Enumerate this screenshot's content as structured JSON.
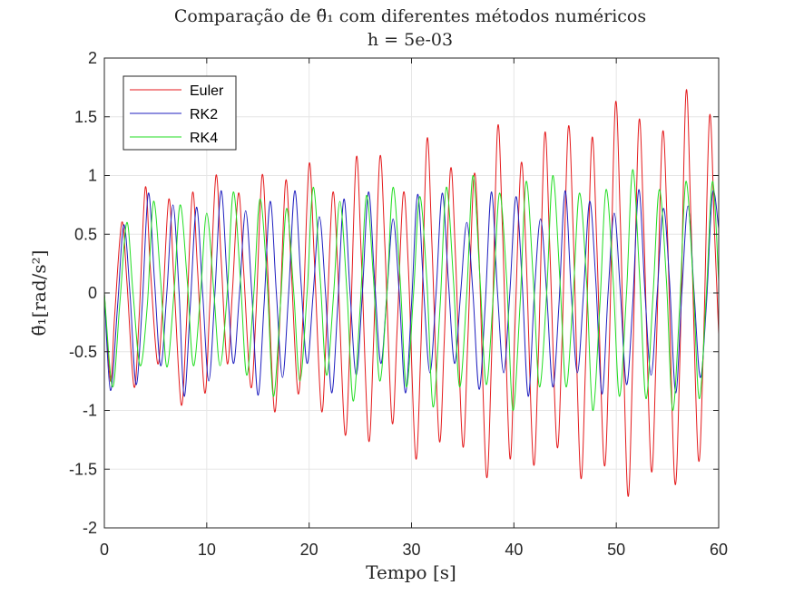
{
  "chart_data": {
    "type": "line",
    "title": "Comparação de θ̈₁ com diferentes métodos numéricos",
    "subtitle": "h = 5e-03",
    "xlabel": "Tempo [s]",
    "ylabel": "θ̈₁[rad/s²]",
    "xlim": [
      0,
      60
    ],
    "ylim": [
      -2,
      2
    ],
    "xticks": [
      0,
      10,
      20,
      30,
      40,
      50,
      60
    ],
    "yticks": [
      -2,
      -1.5,
      -1,
      -0.5,
      0,
      0.5,
      1,
      1.5,
      2
    ],
    "xtick_labels": [
      "0",
      "10",
      "20",
      "30",
      "40",
      "50",
      "60"
    ],
    "ytick_labels": [
      "-2",
      "-1.5",
      "-1",
      "-0.5",
      "0",
      "0.5",
      "1",
      "1.5",
      "2"
    ],
    "grid": true,
    "legend_position": "top-left",
    "series": [
      {
        "name": "Euler",
        "color": "#e41a1c",
        "points": [
          [
            0.0,
            0.0
          ],
          [
            0.6,
            -0.75
          ],
          [
            1.0,
            -0.2
          ],
          [
            1.7,
            0.6
          ],
          [
            2.2,
            0.1
          ],
          [
            2.9,
            -0.8
          ],
          [
            3.4,
            -0.2
          ],
          [
            4.0,
            0.9
          ],
          [
            4.5,
            0.2
          ],
          [
            5.2,
            -0.6
          ],
          [
            5.7,
            -0.1
          ],
          [
            6.3,
            0.8
          ],
          [
            6.8,
            0.1
          ],
          [
            7.5,
            -0.95
          ],
          [
            8.0,
            -0.3
          ],
          [
            8.6,
            0.85
          ],
          [
            9.1,
            0.2
          ],
          [
            9.8,
            -0.85
          ],
          [
            10.3,
            -0.1
          ],
          [
            10.9,
            1.0
          ],
          [
            11.4,
            0.3
          ],
          [
            12.0,
            -0.6
          ],
          [
            12.5,
            0.0
          ],
          [
            13.1,
            0.85
          ],
          [
            13.6,
            0.2
          ],
          [
            14.3,
            -0.8
          ],
          [
            14.8,
            -0.2
          ],
          [
            15.4,
            1.0
          ],
          [
            15.9,
            0.3
          ],
          [
            16.6,
            -1.0
          ],
          [
            17.1,
            -0.3
          ],
          [
            17.7,
            0.95
          ],
          [
            18.2,
            0.3
          ],
          [
            18.9,
            -0.85
          ],
          [
            19.4,
            -0.2
          ],
          [
            20.0,
            1.1
          ],
          [
            20.5,
            0.3
          ],
          [
            21.2,
            -1.0
          ],
          [
            21.7,
            -0.3
          ],
          [
            22.3,
            0.85
          ],
          [
            22.8,
            0.2
          ],
          [
            23.5,
            -1.2
          ],
          [
            24.0,
            -0.4
          ],
          [
            24.6,
            1.15
          ],
          [
            25.1,
            0.3
          ],
          [
            25.8,
            -1.25
          ],
          [
            26.3,
            -0.4
          ],
          [
            26.9,
            1.15
          ],
          [
            27.4,
            0.4
          ],
          [
            28.1,
            -1.1
          ],
          [
            28.6,
            -0.3
          ],
          [
            29.2,
            0.85
          ],
          [
            29.7,
            0.2
          ],
          [
            30.4,
            -1.4
          ],
          [
            30.9,
            -0.5
          ],
          [
            31.5,
            1.3
          ],
          [
            32.0,
            0.4
          ],
          [
            32.7,
            -1.25
          ],
          [
            33.2,
            -0.4
          ],
          [
            33.8,
            1.05
          ],
          [
            34.3,
            0.3
          ],
          [
            35.0,
            -1.3
          ],
          [
            35.5,
            -0.4
          ],
          [
            36.1,
            1.0
          ],
          [
            36.6,
            0.3
          ],
          [
            37.3,
            -1.55
          ],
          [
            37.8,
            -0.6
          ],
          [
            38.4,
            1.4
          ],
          [
            38.9,
            0.5
          ],
          [
            39.6,
            -1.4
          ],
          [
            40.1,
            -0.3
          ],
          [
            40.7,
            1.1
          ],
          [
            41.2,
            0.3
          ],
          [
            41.9,
            -1.45
          ],
          [
            42.4,
            -0.5
          ],
          [
            43.0,
            1.35
          ],
          [
            43.5,
            0.4
          ],
          [
            44.2,
            -1.3
          ],
          [
            44.7,
            -0.4
          ],
          [
            45.3,
            1.4
          ],
          [
            45.8,
            0.5
          ],
          [
            46.5,
            -1.55
          ],
          [
            47.0,
            -0.6
          ],
          [
            47.6,
            1.3
          ],
          [
            48.1,
            0.4
          ],
          [
            48.8,
            -1.45
          ],
          [
            49.3,
            -0.5
          ],
          [
            49.9,
            1.6
          ],
          [
            50.4,
            0.6
          ],
          [
            51.1,
            -1.7
          ],
          [
            51.6,
            -0.6
          ],
          [
            52.2,
            1.45
          ],
          [
            52.7,
            0.5
          ],
          [
            53.4,
            -1.5
          ],
          [
            53.9,
            -0.5
          ],
          [
            54.5,
            1.35
          ],
          [
            55.0,
            0.5
          ],
          [
            55.7,
            -1.6
          ],
          [
            56.2,
            -0.6
          ],
          [
            56.8,
            1.7
          ],
          [
            57.3,
            0.6
          ],
          [
            58.0,
            -1.4
          ],
          [
            58.5,
            -0.5
          ],
          [
            59.1,
            1.5
          ],
          [
            59.6,
            0.5
          ],
          [
            60.0,
            -0.35
          ]
        ]
      },
      {
        "name": "RK2",
        "color": "#1f1fbf",
        "points": [
          [
            0.0,
            0.0
          ],
          [
            0.6,
            -0.83
          ],
          [
            1.3,
            -0.1
          ],
          [
            1.9,
            0.58
          ],
          [
            2.5,
            0.0
          ],
          [
            3.1,
            -0.78
          ],
          [
            3.7,
            -0.1
          ],
          [
            4.3,
            0.85
          ],
          [
            4.9,
            0.1
          ],
          [
            5.5,
            -0.62
          ],
          [
            6.1,
            0.0
          ],
          [
            6.7,
            0.75
          ],
          [
            7.3,
            0.0
          ],
          [
            7.8,
            -0.88
          ],
          [
            8.4,
            -0.1
          ],
          [
            9.0,
            0.73
          ],
          [
            9.6,
            0.0
          ],
          [
            10.2,
            -0.75
          ],
          [
            10.8,
            0.0
          ],
          [
            11.4,
            0.87
          ],
          [
            12.0,
            0.1
          ],
          [
            12.6,
            -0.6
          ],
          [
            13.2,
            0.0
          ],
          [
            13.8,
            0.7
          ],
          [
            14.4,
            0.0
          ],
          [
            15.0,
            -0.87
          ],
          [
            15.6,
            -0.1
          ],
          [
            16.2,
            0.78
          ],
          [
            16.8,
            0.0
          ],
          [
            17.4,
            -0.72
          ],
          [
            18.0,
            0.0
          ],
          [
            18.6,
            0.87
          ],
          [
            19.2,
            0.1
          ],
          [
            19.8,
            -0.6
          ],
          [
            20.4,
            0.0
          ],
          [
            21.0,
            0.65
          ],
          [
            21.6,
            0.0
          ],
          [
            22.2,
            -0.85
          ],
          [
            22.8,
            -0.1
          ],
          [
            23.4,
            0.8
          ],
          [
            24.0,
            0.0
          ],
          [
            24.6,
            -0.7
          ],
          [
            25.2,
            0.0
          ],
          [
            25.8,
            0.86
          ],
          [
            26.4,
            0.1
          ],
          [
            27.0,
            -0.6
          ],
          [
            27.6,
            0.0
          ],
          [
            28.2,
            0.63
          ],
          [
            28.8,
            0.0
          ],
          [
            29.4,
            -0.85
          ],
          [
            30.0,
            -0.1
          ],
          [
            30.6,
            0.84
          ],
          [
            31.2,
            0.0
          ],
          [
            31.8,
            -0.68
          ],
          [
            32.4,
            0.0
          ],
          [
            33.0,
            0.85
          ],
          [
            33.6,
            0.1
          ],
          [
            34.2,
            -0.6
          ],
          [
            34.8,
            0.0
          ],
          [
            35.4,
            0.6
          ],
          [
            36.0,
            0.0
          ],
          [
            36.6,
            -0.82
          ],
          [
            37.2,
            -0.1
          ],
          [
            37.8,
            0.86
          ],
          [
            38.4,
            0.0
          ],
          [
            39.0,
            -0.68
          ],
          [
            39.6,
            0.0
          ],
          [
            40.2,
            0.82
          ],
          [
            40.8,
            0.1
          ],
          [
            41.4,
            -0.88
          ],
          [
            42.0,
            0.0
          ],
          [
            42.6,
            0.63
          ],
          [
            43.2,
            0.0
          ],
          [
            43.8,
            -0.8
          ],
          [
            44.4,
            -0.1
          ],
          [
            45.0,
            0.87
          ],
          [
            45.6,
            0.0
          ],
          [
            46.2,
            -0.68
          ],
          [
            46.8,
            0.0
          ],
          [
            47.4,
            0.78
          ],
          [
            48.0,
            0.1
          ],
          [
            48.6,
            -0.86
          ],
          [
            49.2,
            0.0
          ],
          [
            49.8,
            0.68
          ],
          [
            50.4,
            0.0
          ],
          [
            51.0,
            -0.78
          ],
          [
            51.6,
            -0.1
          ],
          [
            52.2,
            0.88
          ],
          [
            52.8,
            0.0
          ],
          [
            53.4,
            -0.7
          ],
          [
            54.0,
            0.0
          ],
          [
            54.6,
            0.72
          ],
          [
            55.2,
            0.1
          ],
          [
            55.8,
            -0.85
          ],
          [
            56.4,
            0.0
          ],
          [
            57.0,
            0.74
          ],
          [
            57.6,
            0.0
          ],
          [
            58.2,
            -0.72
          ],
          [
            58.8,
            -0.1
          ],
          [
            59.4,
            0.85
          ],
          [
            60.0,
            0.55
          ]
        ]
      },
      {
        "name": "RK4",
        "color": "#22dd22",
        "points": [
          [
            0.0,
            0.0
          ],
          [
            0.8,
            -0.8
          ],
          [
            1.5,
            -0.1
          ],
          [
            2.2,
            0.6
          ],
          [
            2.8,
            0.0
          ],
          [
            3.5,
            -0.62
          ],
          [
            4.2,
            -0.1
          ],
          [
            4.8,
            0.78
          ],
          [
            5.5,
            0.1
          ],
          [
            6.1,
            -0.63
          ],
          [
            6.8,
            0.0
          ],
          [
            7.4,
            0.75
          ],
          [
            8.1,
            0.1
          ],
          [
            8.7,
            -0.62
          ],
          [
            9.4,
            0.0
          ],
          [
            10.0,
            0.68
          ],
          [
            10.7,
            0.0
          ],
          [
            11.3,
            -0.62
          ],
          [
            12.0,
            0.0
          ],
          [
            12.6,
            0.86
          ],
          [
            13.3,
            0.1
          ],
          [
            13.9,
            -0.7
          ],
          [
            14.6,
            0.0
          ],
          [
            15.2,
            0.8
          ],
          [
            15.9,
            0.1
          ],
          [
            16.5,
            -0.88
          ],
          [
            17.2,
            -0.1
          ],
          [
            17.8,
            0.72
          ],
          [
            18.5,
            0.0
          ],
          [
            19.1,
            -0.75
          ],
          [
            19.8,
            0.0
          ],
          [
            20.4,
            0.9
          ],
          [
            21.1,
            0.1
          ],
          [
            21.7,
            -0.7
          ],
          [
            22.4,
            0.0
          ],
          [
            23.0,
            0.78
          ],
          [
            23.7,
            0.0
          ],
          [
            24.3,
            -0.92
          ],
          [
            25.0,
            -0.1
          ],
          [
            25.6,
            0.83
          ],
          [
            26.3,
            0.1
          ],
          [
            26.9,
            -0.75
          ],
          [
            27.6,
            0.0
          ],
          [
            28.2,
            0.9
          ],
          [
            28.9,
            0.1
          ],
          [
            29.5,
            -0.8
          ],
          [
            30.2,
            0.0
          ],
          [
            30.8,
            0.82
          ],
          [
            31.5,
            0.1
          ],
          [
            32.1,
            -0.97
          ],
          [
            32.8,
            -0.1
          ],
          [
            33.4,
            0.9
          ],
          [
            34.1,
            0.1
          ],
          [
            34.7,
            -0.8
          ],
          [
            35.4,
            0.0
          ],
          [
            36.0,
            1.0
          ],
          [
            36.7,
            0.1
          ],
          [
            37.3,
            -0.78
          ],
          [
            38.0,
            0.0
          ],
          [
            38.6,
            0.85
          ],
          [
            39.3,
            0.1
          ],
          [
            39.9,
            -1.0
          ],
          [
            40.6,
            -0.1
          ],
          [
            41.2,
            0.95
          ],
          [
            41.9,
            0.1
          ],
          [
            42.5,
            -0.8
          ],
          [
            43.2,
            0.0
          ],
          [
            43.8,
            1.0
          ],
          [
            44.5,
            0.1
          ],
          [
            45.1,
            -0.8
          ],
          [
            45.8,
            0.0
          ],
          [
            46.4,
            0.85
          ],
          [
            47.1,
            0.1
          ],
          [
            47.7,
            -1.0
          ],
          [
            48.4,
            -0.1
          ],
          [
            49.0,
            0.88
          ],
          [
            49.7,
            0.1
          ],
          [
            50.3,
            -0.88
          ],
          [
            51.0,
            0.0
          ],
          [
            51.6,
            1.05
          ],
          [
            52.3,
            0.1
          ],
          [
            52.9,
            -0.9
          ],
          [
            53.6,
            0.0
          ],
          [
            54.2,
            0.88
          ],
          [
            54.9,
            0.1
          ],
          [
            55.5,
            -1.0
          ],
          [
            56.2,
            -0.1
          ],
          [
            56.8,
            0.95
          ],
          [
            57.5,
            0.1
          ],
          [
            58.1,
            -0.9
          ],
          [
            58.8,
            0.0
          ],
          [
            59.4,
            0.95
          ],
          [
            60.0,
            0.1
          ]
        ]
      }
    ]
  }
}
